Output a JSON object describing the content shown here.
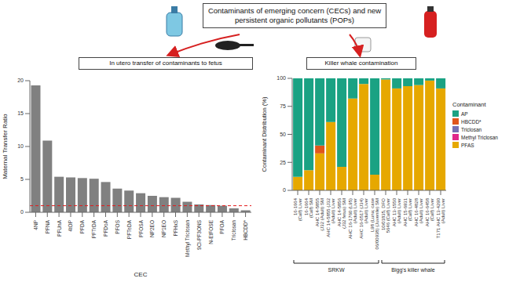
{
  "header": {
    "title": "Contaminants of emerging concern (CECs) and new persistent organic pollutants (POPs)",
    "left_panel": "In utero transfer of contaminants to fetus",
    "right_panel": "Killer whale contamination"
  },
  "chart_data": [
    {
      "type": "bar",
      "x_label": "CEC",
      "y_label": "Maternal Transfer Ratio",
      "categories": [
        "4NP",
        "PFNA",
        "PFUnA",
        "4tOP",
        "PFDA",
        "PFTrDA",
        "PFDoA",
        "PFOS",
        "PFTeDA",
        "PFOSA",
        "NP2EO",
        "NP1EO",
        "PFHxS",
        "Methyl Triclosan",
        "9Cl-PF3ONS",
        "N-EtFOSE",
        "PFOA",
        "Triclosan",
        "HBCDD*"
      ],
      "values": [
        19.3,
        10.9,
        5.4,
        5.3,
        5.2,
        5.1,
        4.6,
        3.6,
        3.3,
        2.9,
        2.5,
        2.3,
        2.2,
        1.6,
        1.2,
        1.1,
        1.0,
        0.6,
        0.3
      ],
      "color": "#808080",
      "ylim": [
        0,
        20
      ],
      "yticks": [
        0,
        5,
        10,
        15,
        20
      ],
      "reference_line": {
        "value": 1,
        "color": "#e41a1c",
        "line_style": "dashed"
      }
    },
    {
      "type": "bar",
      "stacked": true,
      "y_label": "Contaminant Distribution (%)",
      "legend": "right",
      "legend_title": "Contaminant",
      "categories": [
        "16-1664 (Calf) Liver",
        "16-1664 (Calf) SM",
        "AHC 14-5855 (J32 (Adult) SM",
        "AHC 14-5855 (J32 (Adult) Liver",
        "AHC 14-5856 (J32 fetus) SM",
        "AHC 16-1760 (L95) (Adult) Liver",
        "AHC 16-6517 (J34) (Adult) Liver",
        "L98 (Luna; case 06/00938) (Juvenile) SM",
        "10/01835, DFO 5646 (Calf) Liver",
        "AHC 13-1550 (Adult) Liver",
        "AHC 15-6931 (Calf) Liver",
        "AHC 16-4828 (Adult) Liver",
        "AHC 16-6458 (Calf) Liver",
        "T171 AHC 13-4290 (Adult) Liver"
      ],
      "series": [
        {
          "name": "AP",
          "color": "#1aa283",
          "values": [
            88,
            82,
            60,
            39,
            79,
            18,
            5,
            86,
            1,
            9,
            7,
            6,
            2,
            9
          ]
        },
        {
          "name": "HBCDD*",
          "color": "#e0561b",
          "values": [
            0,
            0,
            7,
            0,
            0,
            0,
            0,
            0,
            0,
            0,
            0,
            0,
            0,
            0
          ]
        },
        {
          "name": "Triclosan",
          "color": "#7670b3",
          "values": [
            0,
            0,
            0,
            0,
            0,
            0,
            0,
            0,
            0,
            0,
            0,
            0,
            0,
            0
          ]
        },
        {
          "name": "Methyl Triclosan",
          "color": "#e0288a",
          "values": [
            0,
            0,
            0,
            0,
            0,
            0,
            0,
            0,
            0,
            0,
            0,
            0,
            0,
            0
          ]
        },
        {
          "name": "PFAS",
          "color": "#e6a800",
          "values": [
            12,
            18,
            33,
            61,
            21,
            82,
            95,
            14,
            99,
            91,
            93,
            94,
            98,
            91
          ]
        }
      ],
      "ylim": [
        0,
        100
      ],
      "yticks": [
        0,
        25,
        50,
        75,
        100
      ],
      "groups": [
        {
          "label": "SRKW",
          "from": "16-1664 (Calf) Liver",
          "to": "L98 (Luna; case 06/00938) (Juvenile) SM"
        },
        {
          "label": "Bigg's killer whale",
          "from": "10/01835, DFO 5646 (Calf) Liver",
          "to": "T171 AHC 13-4290 (Adult) Liver"
        }
      ]
    }
  ]
}
